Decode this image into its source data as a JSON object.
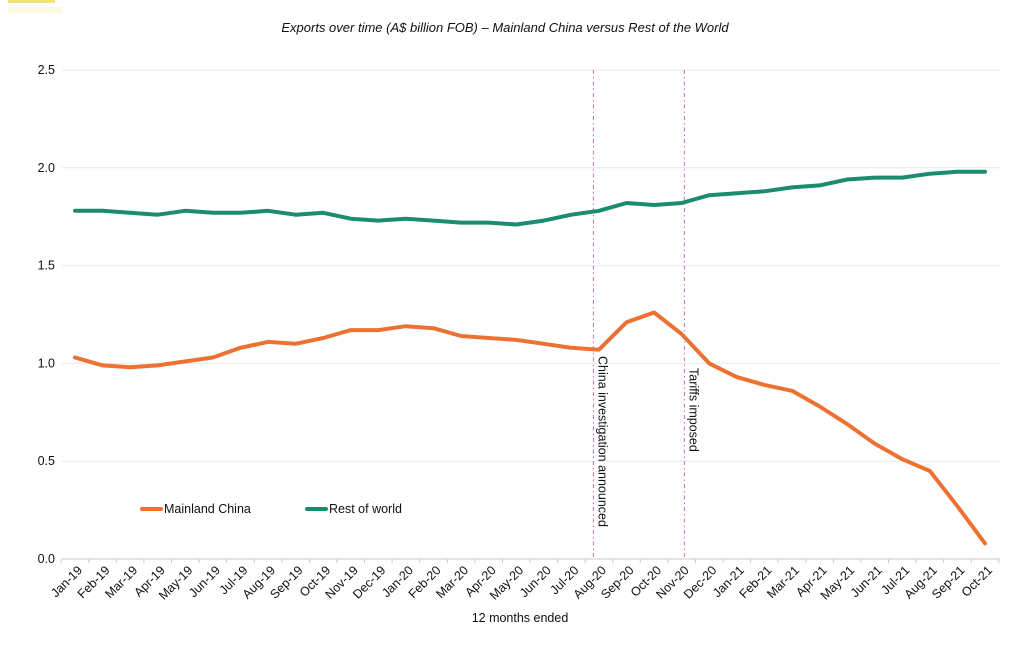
{
  "chart_data": {
    "type": "line",
    "title": "Exports over time (A$ billion FOB) – Mainland China versus Rest of the World",
    "xlabel": "12 months ended",
    "ylabel": "",
    "ylim": [
      0,
      2.5
    ],
    "ytick_labels": [
      "0.0",
      "0.5",
      "1.0",
      "1.5",
      "2.0",
      "2.5"
    ],
    "grid": "horizontal",
    "legend_position": "inside-bottom-left",
    "categories": [
      "Jan-19",
      "Feb-19",
      "Mar-19",
      "Apr-19",
      "May-19",
      "Jun-19",
      "Jul-19",
      "Aug-19",
      "Sep-19",
      "Oct-19",
      "Nov-19",
      "Dec-19",
      "Jan-20",
      "Feb-20",
      "Mar-20",
      "Apr-20",
      "May-20",
      "Jun-20",
      "Jul-20",
      "Aug-20",
      "Sep-20",
      "Oct-20",
      "Nov-20",
      "Dec-20",
      "Jan-21",
      "Feb-21",
      "Mar-21",
      "Apr-21",
      "May-21",
      "Jun-21",
      "Jul-21",
      "Aug-21",
      "Sep-21",
      "Oct-21"
    ],
    "series": [
      {
        "name": "Mainland China",
        "color": "#ED7231",
        "values": [
          1.03,
          0.99,
          0.98,
          0.99,
          1.01,
          1.03,
          1.08,
          1.11,
          1.1,
          1.13,
          1.17,
          1.17,
          1.19,
          1.18,
          1.14,
          1.13,
          1.12,
          1.1,
          1.08,
          1.07,
          1.21,
          1.26,
          1.15,
          1.0,
          0.93,
          0.89,
          0.86,
          0.78,
          0.69,
          0.59,
          0.51,
          0.45,
          0.27,
          0.08
        ]
      },
      {
        "name": "Rest of world",
        "color": "#1B8C6D",
        "values": [
          1.78,
          1.78,
          1.77,
          1.76,
          1.78,
          1.77,
          1.77,
          1.78,
          1.76,
          1.77,
          1.74,
          1.73,
          1.74,
          1.73,
          1.72,
          1.72,
          1.71,
          1.73,
          1.76,
          1.78,
          1.82,
          1.81,
          1.82,
          1.86,
          1.87,
          1.88,
          1.9,
          1.91,
          1.94,
          1.95,
          1.95,
          1.97,
          1.98,
          1.98
        ]
      }
    ],
    "annotations": [
      {
        "label": "China investigation announced",
        "x_index": 18.8,
        "color": "#C973B6"
      },
      {
        "label": "Tariffs imposed",
        "x_index": 22.1,
        "color": "#C973B6"
      }
    ]
  }
}
